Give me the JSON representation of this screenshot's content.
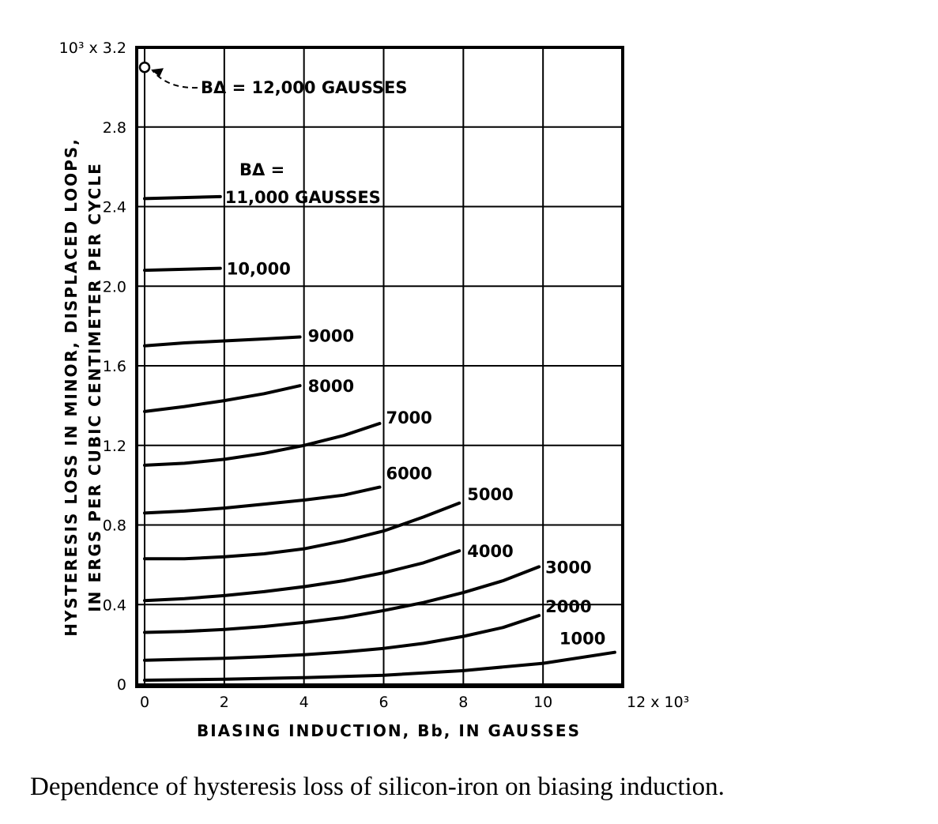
{
  "chart_data": {
    "type": "line",
    "xlabel": "BIASING INDUCTION, Bb, IN GAUSSES",
    "ylabel_line1": "HYSTERESIS LOSS IN MINOR, DISPLACED LOOPS,",
    "ylabel_line2": "IN ERGS PER CUBIC CENTIMETER PER CYCLE",
    "x_ticks": [
      "0",
      "2",
      "4",
      "6",
      "8",
      "10",
      "12 x 10³"
    ],
    "y_ticks": [
      "0",
      "0.4",
      "0.8",
      "1.2",
      "1.6",
      "2.0",
      "2.4",
      "2.8",
      "10³ x 3.2"
    ],
    "xlim": [
      0,
      12000
    ],
    "ylim": [
      0,
      3200
    ],
    "grid": true,
    "point": {
      "x": 0,
      "y": 3100,
      "label": "BΔ = 12,000 GAUSSES"
    },
    "series_header": "BΔ =",
    "series": [
      {
        "name": "11,000 GAUSSES",
        "x": [
          0,
          1900
        ],
        "y": [
          2440,
          2450
        ]
      },
      {
        "name": "10,000",
        "x": [
          0,
          1900
        ],
        "y": [
          2080,
          2090
        ]
      },
      {
        "name": "9000",
        "x": [
          0,
          1000,
          2000,
          3000,
          3900
        ],
        "y": [
          1700,
          1715,
          1725,
          1735,
          1745
        ]
      },
      {
        "name": "8000",
        "x": [
          0,
          1000,
          2000,
          3000,
          3900
        ],
        "y": [
          1370,
          1395,
          1425,
          1460,
          1500
        ]
      },
      {
        "name": "7000",
        "x": [
          0,
          1000,
          2000,
          3000,
          4000,
          5000,
          5900
        ],
        "y": [
          1100,
          1110,
          1130,
          1160,
          1200,
          1250,
          1310
        ]
      },
      {
        "name": "6000",
        "x": [
          0,
          1000,
          2000,
          3000,
          4000,
          5000,
          5900
        ],
        "y": [
          860,
          870,
          885,
          905,
          925,
          950,
          990
        ]
      },
      {
        "name": "5000",
        "x": [
          0,
          1000,
          2000,
          3000,
          4000,
          5000,
          6000,
          7000,
          7900
        ],
        "y": [
          630,
          630,
          640,
          655,
          680,
          720,
          770,
          840,
          910
        ]
      },
      {
        "name": "4000",
        "x": [
          0,
          1000,
          2000,
          3000,
          4000,
          5000,
          6000,
          7000,
          7900
        ],
        "y": [
          420,
          430,
          445,
          465,
          490,
          520,
          560,
          610,
          670
        ]
      },
      {
        "name": "3000",
        "x": [
          0,
          1000,
          2000,
          3000,
          4000,
          5000,
          6000,
          7000,
          8000,
          9000,
          9900
        ],
        "y": [
          260,
          265,
          275,
          290,
          310,
          335,
          370,
          410,
          460,
          520,
          590
        ]
      },
      {
        "name": "2000",
        "x": [
          0,
          1000,
          2000,
          3000,
          4000,
          5000,
          6000,
          7000,
          8000,
          9000,
          9900
        ],
        "y": [
          120,
          125,
          130,
          138,
          148,
          162,
          180,
          205,
          240,
          285,
          345
        ]
      },
      {
        "name": "1000",
        "x": [
          0,
          2000,
          4000,
          6000,
          8000,
          10000,
          11800
        ],
        "y": [
          20,
          25,
          33,
          45,
          68,
          105,
          160
        ]
      }
    ]
  },
  "caption": "Dependence of hysteresis loss of silicon-iron on biasing induction."
}
